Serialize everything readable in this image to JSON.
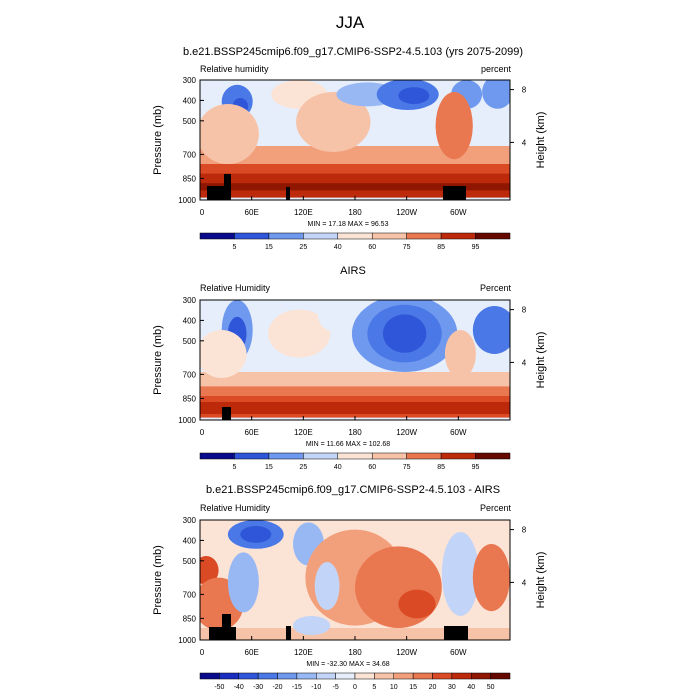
{
  "figure": {
    "title": "JJA"
  },
  "chart_data": [
    {
      "type": "heatmap",
      "title": "b.e21.BSSP245cmip6.f09_g17.CMIP6-SSP2-4.5.103 (yrs 2075-2099)",
      "left_label": "Relative humidity",
      "right_label": "percent",
      "ylabel": "Pressure (mb)",
      "ylabel_right": "Height (km)",
      "x_ticks": [
        "0",
        "60E",
        "120E",
        "180",
        "120W",
        "60W"
      ],
      "y_ticks": [
        "300",
        "400",
        "500",
        "700",
        "850",
        "1000"
      ],
      "y_right_ticks": [
        "8",
        "4"
      ],
      "stats": "MIN = 17.18  MAX = 96.53",
      "colorbar_labels": [
        "5",
        "15",
        "25",
        "40",
        "60",
        "75",
        "85",
        "95"
      ]
    },
    {
      "type": "heatmap",
      "title": "AIRS",
      "left_label": "Relative Humidity",
      "right_label": "Percent",
      "ylabel": "Pressure (mb)",
      "ylabel_right": "Height (km)",
      "x_ticks": [
        "0",
        "60E",
        "120E",
        "180",
        "120W",
        "60W"
      ],
      "y_ticks": [
        "300",
        "400",
        "500",
        "700",
        "850",
        "1000"
      ],
      "y_right_ticks": [
        "8",
        "4"
      ],
      "stats": "MIN = 11.66  MAX = 102.68",
      "colorbar_labels": [
        "5",
        "15",
        "25",
        "40",
        "60",
        "75",
        "85",
        "95"
      ]
    },
    {
      "type": "heatmap",
      "title": "b.e21.BSSP245cmip6.f09_g17.CMIP6-SSP2-4.5.103 - AIRS",
      "left_label": "Relative Humidity",
      "right_label": "Percent",
      "ylabel": "Pressure (mb)",
      "ylabel_right": "Height (km)",
      "x_ticks": [
        "0",
        "60E",
        "120E",
        "180",
        "120W",
        "60W"
      ],
      "y_ticks": [
        "300",
        "400",
        "500",
        "700",
        "850",
        "1000"
      ],
      "y_right_ticks": [
        "8",
        "4"
      ],
      "stats": "MIN = -32.30  MAX = 34.68",
      "colorbar_labels": [
        "-50",
        "-40",
        "-30",
        "-20",
        "-15",
        "-10",
        "-5",
        "0",
        "5",
        "10",
        "15",
        "20",
        "30",
        "40",
        "50"
      ]
    }
  ],
  "colors": {
    "palette": [
      "#0a0a8c",
      "#1a2fbf",
      "#2f55d8",
      "#4a78e6",
      "#6f98ef",
      "#98b8f4",
      "#c2d5f8",
      "#e6eefb",
      "#fbe3d6",
      "#f7c3a8",
      "#f2a07c",
      "#e9774f",
      "#da4a24",
      "#bd2a0b",
      "#8f1600",
      "#650900"
    ]
  }
}
